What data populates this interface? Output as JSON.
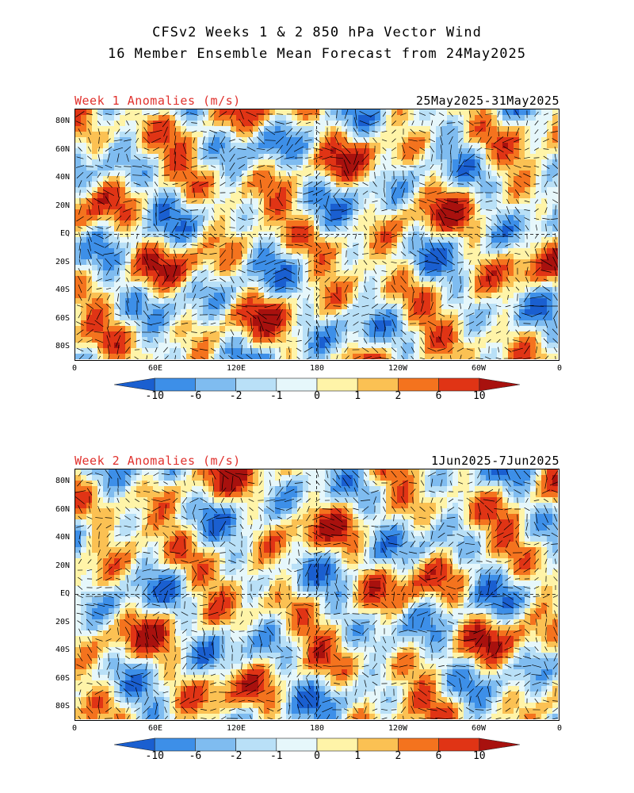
{
  "header": {
    "line1": "CFSv2 Weeks 1 & 2 850 hPa Vector Wind",
    "line2": "16 Member Ensemble Mean Forecast from 24May2025"
  },
  "panels": [
    {
      "label": "Week 1 Anomalies (m/s)",
      "dates": "25May2025-31May2025"
    },
    {
      "label": "Week 2 Anomalies (m/s)",
      "dates": "1Jun2025-7Jun2025"
    }
  ],
  "axes": {
    "lat_labels": [
      "80N",
      "60N",
      "40N",
      "20N",
      "EQ",
      "20S",
      "40S",
      "60S",
      "80S"
    ],
    "lon_labels": [
      "0",
      "60E",
      "120E",
      "180",
      "120W",
      "60W",
      "0"
    ]
  },
  "colorbar": {
    "labels": [
      "-10",
      "-6",
      "-2",
      "-1",
      "0",
      "1",
      "2",
      "6",
      "10"
    ],
    "colors": [
      "#1a5fd0",
      "#3d8fe8",
      "#7fbcf0",
      "#b9e0f7",
      "#e6f7fb",
      "#fff4a8",
      "#fbc153",
      "#f4731e",
      "#e03415",
      "#a8110e"
    ]
  }
}
